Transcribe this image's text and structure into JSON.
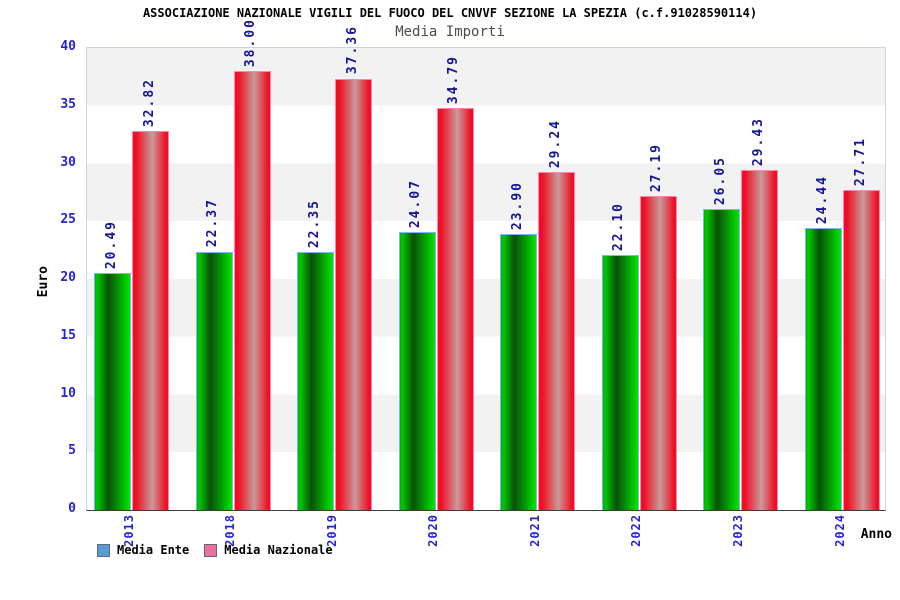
{
  "title": "ASSOCIAZIONE NAZIONALE VIGILI DEL FUOCO DEL CNVVF SEZIONE LA SPEZIA (c.f.91028590114)",
  "subtitle": "Media Importi",
  "chart_data": {
    "type": "bar",
    "categories": [
      "2013",
      "2018",
      "2019",
      "2020",
      "2021",
      "2022",
      "2023",
      "2024"
    ],
    "series": [
      {
        "name": "Media Ente",
        "values": [
          20.49,
          22.37,
          22.35,
          24.07,
          23.9,
          22.1,
          26.05,
          24.44
        ],
        "labels": [
          "20.49",
          "22.37",
          "22.35",
          "24.07",
          "23.90",
          "22.10",
          "26.05",
          "24.44"
        ],
        "fill": "green gradient",
        "color_edge": "#00b400",
        "color_mid_dark": "#0a500a",
        "color_bright": "#00e600",
        "border_color": "#82b4f0",
        "legend_color": "#5b9bd5"
      },
      {
        "name": "Media Nazionale",
        "values": [
          32.82,
          38.0,
          37.36,
          34.79,
          29.24,
          27.19,
          29.43,
          27.71
        ],
        "labels": [
          "32.82",
          "38.00",
          "37.36",
          "34.79",
          "29.24",
          "27.19",
          "29.43",
          "27.71"
        ],
        "fill": "red gradient",
        "color_edge": "#ee1022",
        "color_mid_light": "#c89a9a",
        "border_color": "#ff85b5",
        "legend_color": "#ec6fa0"
      }
    ],
    "xlabel": "Anno",
    "ylabel": "Euro",
    "ylim": [
      0,
      40
    ],
    "yticks": [
      0,
      5,
      10,
      15,
      20,
      25,
      30,
      35,
      40
    ],
    "grid": "alternating horizontal bands every 5 units (gray/white, gray at top)",
    "legend_position": "bottom-left",
    "value_labels_rotated_90": true,
    "x_labels_rotated_90": true
  },
  "colors": {
    "axis_text": "#2525cf",
    "value_text": "#15159a",
    "subtitle_text": "#4d4d4d",
    "stripe_gray": "#f2f2f2",
    "plot_border": "#ccd4e0",
    "axis_line": "#3c3c3c"
  }
}
